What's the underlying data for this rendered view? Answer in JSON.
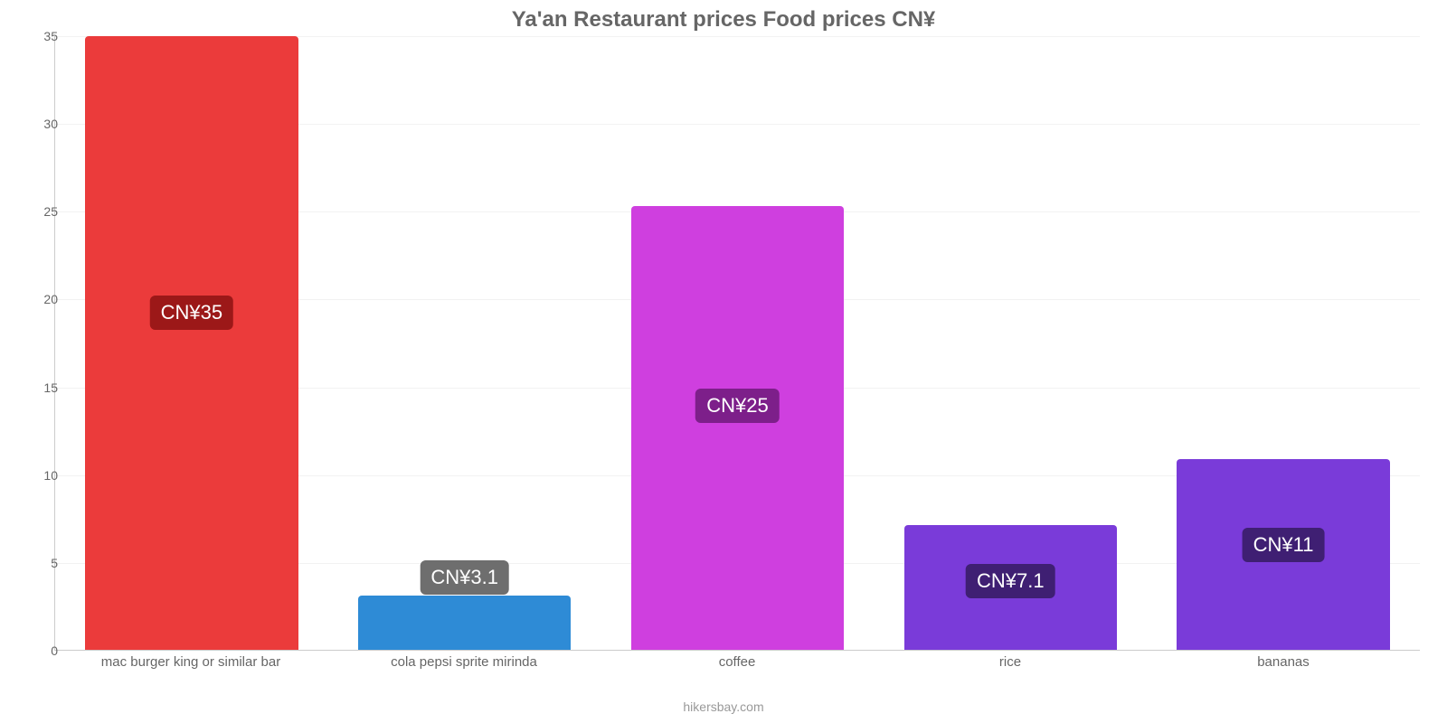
{
  "chart": {
    "type": "bar",
    "title": "Ya'an Restaurant prices Food prices CN¥",
    "title_color": "#666666",
    "title_fontsize": 24,
    "background_color": "#ffffff",
    "grid_color": "#f2f2f2",
    "axis_color": "#cccccc",
    "label_color": "#666666",
    "label_fontsize": 15,
    "ytick_fontsize": 14,
    "footer": "hikersbay.com",
    "footer_color": "#999999",
    "ylim": [
      0,
      35
    ],
    "ytick_step": 5,
    "yticks": [
      0,
      5,
      10,
      15,
      20,
      25,
      30,
      35
    ],
    "bar_width_pct": 78,
    "categories": [
      "mac burger king or similar bar",
      "cola pepsi sprite mirinda",
      "coffee",
      "rice",
      "bananas"
    ],
    "values": [
      35,
      3.1,
      25.3,
      7.1,
      10.9
    ],
    "value_labels": [
      "CN¥35",
      "CN¥3.1",
      "CN¥25",
      "CN¥7.1",
      "CN¥11"
    ],
    "bar_colors": [
      "#eb3b3b",
      "#2e8bd6",
      "#cf3fdf",
      "#7a3bd9",
      "#7a3bd9"
    ],
    "badge_colors": [
      "#9c1818",
      "#6e6e6e",
      "#7d1f8a",
      "#3f1f73",
      "#3f1f73"
    ],
    "badge_text_color": "#ffffff",
    "badge_fontsize": 22
  }
}
